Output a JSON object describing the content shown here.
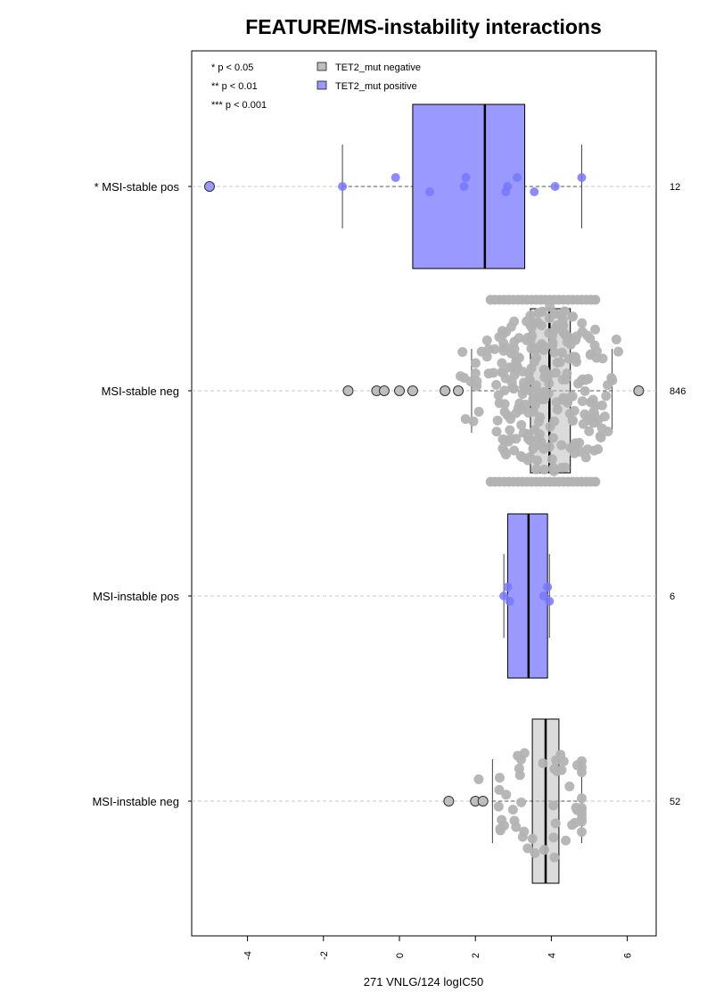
{
  "chart_data": {
    "type": "box",
    "orientation": "horizontal",
    "title": "FEATURE/MS-instability interactions",
    "xlabel": "271 VNLG/124 logIC50",
    "xlim": [
      -5.5,
      6.8
    ],
    "x_ticks": [
      -4,
      -2,
      0,
      2,
      4,
      6
    ],
    "x_tick_labels": [
      "-4",
      "-2",
      "0",
      "2",
      "4",
      "6"
    ],
    "significance_legend": [
      "* p < 0.05",
      "** p < 0.01",
      "*** p < 0.001"
    ],
    "legend": [
      {
        "label": "TET2_mut negative",
        "color": "#bebebe"
      },
      {
        "label": "TET2_mut positive",
        "color": "#9999ff"
      }
    ],
    "colors": {
      "negative": "#bebebe",
      "positive": "#9999ff",
      "neg_points": "#b3b3b3",
      "pos_points": "#7777ff",
      "grid": "#c8c8c8"
    },
    "groups": [
      {
        "label": "* MSI-stable pos",
        "n": "12",
        "mutation": "positive",
        "q1": 0.35,
        "median": 2.25,
        "q3": 3.3,
        "whisker_low": -1.5,
        "whisker_high": 4.8,
        "outliers": [
          -5.0
        ],
        "points": [
          -1.5,
          -0.1,
          0.8,
          1.7,
          1.75,
          2.8,
          2.85,
          3.1,
          3.55,
          4.1,
          4.8
        ]
      },
      {
        "label": "MSI-stable neg",
        "n": "846",
        "mutation": "negative",
        "q1": 3.45,
        "median": 3.95,
        "q3": 4.5,
        "whisker_low": 1.9,
        "whisker_high": 5.6,
        "outliers": [
          -1.35,
          -0.6,
          -0.4,
          0,
          0.35,
          1.2,
          1.55,
          6.3
        ],
        "points_range": [
          1.6,
          5.8
        ]
      },
      {
        "label": "MSI-instable pos",
        "n": "6",
        "mutation": "positive",
        "q1": 2.85,
        "median": 3.4,
        "q3": 3.9,
        "whisker_low": 2.75,
        "whisker_high": 3.95,
        "outliers": [],
        "points": [
          2.75,
          2.85,
          2.9,
          3.8,
          3.9,
          3.95
        ]
      },
      {
        "label": "MSI-instable neg",
        "n": "52",
        "mutation": "negative",
        "q1": 3.5,
        "median": 3.85,
        "q3": 4.2,
        "whisker_low": 2.45,
        "whisker_high": 4.8,
        "outliers": [
          1.3,
          2.0,
          2.2
        ],
        "points_range": [
          2.0,
          4.8
        ]
      }
    ]
  }
}
